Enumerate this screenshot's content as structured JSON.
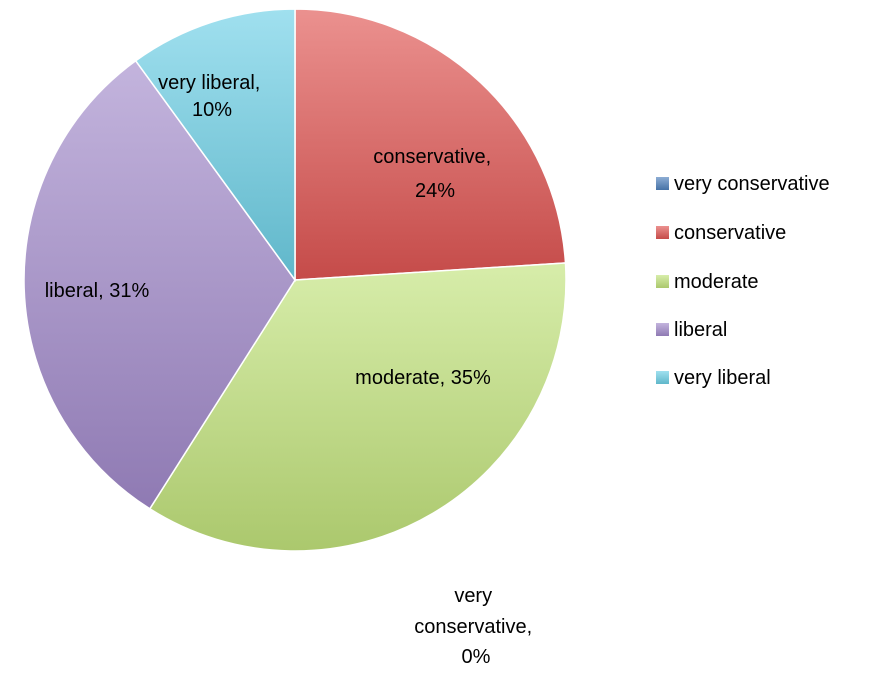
{
  "chart_data": {
    "type": "pie",
    "title": "",
    "slices": [
      {
        "label": "very conservative",
        "value": 0,
        "data_label": "very conservative, 0%",
        "color": "#4F81BD"
      },
      {
        "label": "conservative",
        "value": 24,
        "data_label": "conservative, 24%",
        "color": "#E05553"
      },
      {
        "label": "moderate",
        "value": 35,
        "data_label": "moderate, 35%",
        "color": "#C2E37C"
      },
      {
        "label": "liberal",
        "value": 31,
        "data_label": "liberal, 31%",
        "color": "#A28BCB"
      },
      {
        "label": "very liberal",
        "value": 10,
        "data_label": "very liberal, 10%",
        "color": "#6DD0E6"
      }
    ],
    "legend": {
      "position": "right",
      "entries": [
        "very conservative",
        "conservative",
        "moderate",
        "liberal",
        "very liberal"
      ]
    }
  }
}
